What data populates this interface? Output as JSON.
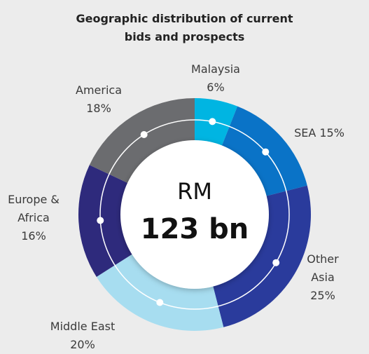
{
  "chart_data": {
    "type": "donut",
    "title": "Geographic distribution of current bids and prospects",
    "categories": [
      "Malaysia",
      "SEA",
      "Other Asia",
      "Middle East",
      "Europe & Africa",
      "America"
    ],
    "values": [
      6,
      15,
      25,
      20,
      16,
      18
    ],
    "value_labels": [
      "6%",
      "15%",
      "25%",
      "20%",
      "16%",
      "18%"
    ],
    "colors": [
      "#00b5e2",
      "#0a73c7",
      "#2a3b9c",
      "#a7ddf0",
      "#2e2a7c",
      "#6b6c6f"
    ],
    "center_label": {
      "unit": "RM",
      "amount": "123 bn"
    }
  }
}
